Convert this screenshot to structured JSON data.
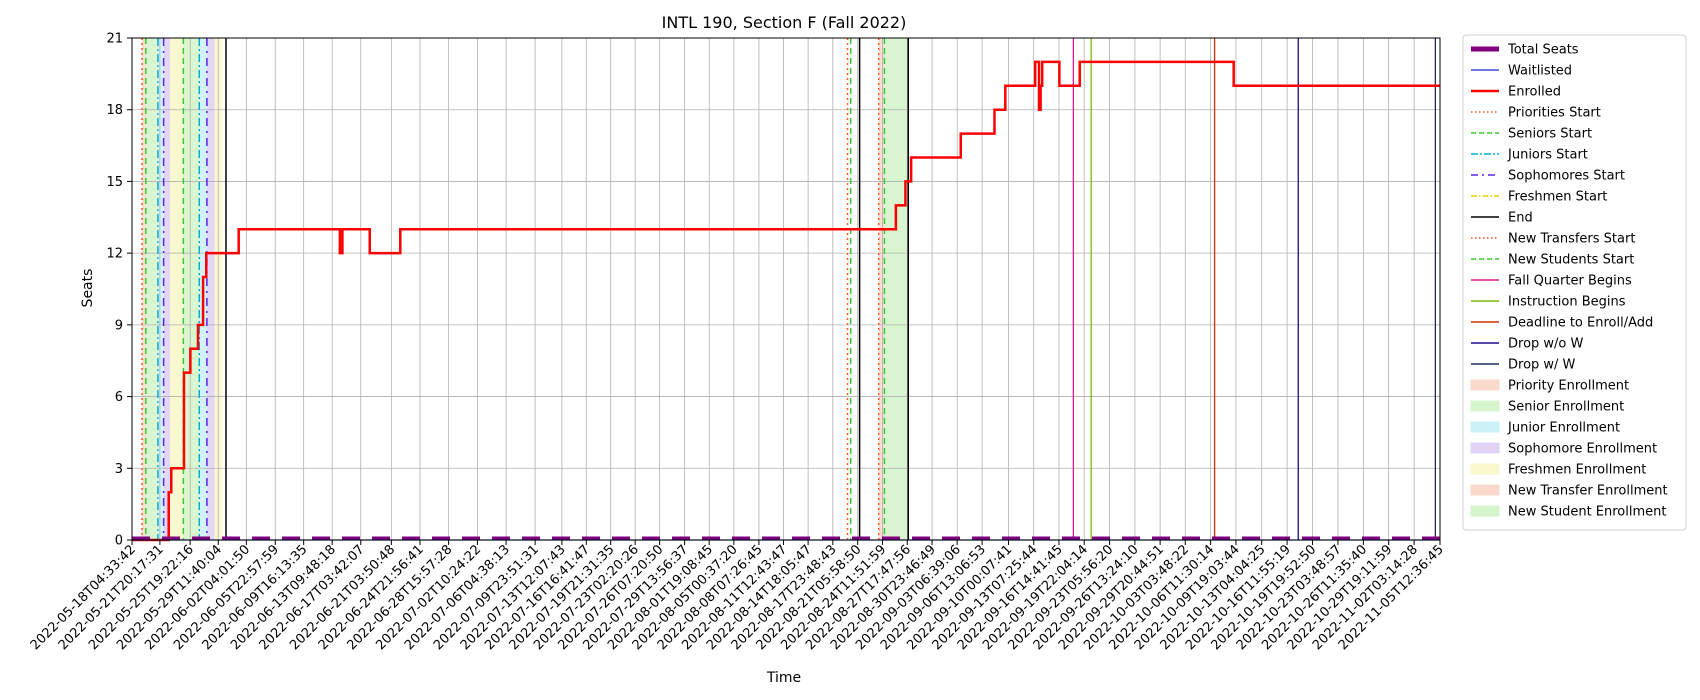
{
  "chart_data": {
    "type": "line",
    "title": "INTL 190, Section F (Fall 2022)",
    "xlabel": "Time",
    "ylabel": "Seats",
    "ylim": [
      0,
      21
    ],
    "yticks": [
      0,
      3,
      6,
      9,
      12,
      15,
      18,
      21
    ],
    "grid": true,
    "legend_position": "outside-right",
    "x_start": "2022-05-18T04:33:42",
    "x_end": "2022-11-05T12:36:45",
    "xticks": [
      "2022-05-18T04:33:42",
      "2022-05-21T20:17:31",
      "2022-05-25T19:22:16",
      "2022-05-29T11:40:04",
      "2022-06-02T04:01:50",
      "2022-06-05T22:57:59",
      "2022-06-09T16:13:35",
      "2022-06-13T09:48:18",
      "2022-06-17T03:42:07",
      "2022-06-21T03:50:48",
      "2022-06-24T21:56:41",
      "2022-06-28T15:57:28",
      "2022-07-02T10:24:22",
      "2022-07-06T04:38:13",
      "2022-07-09T23:51:31",
      "2022-07-13T12:07:43",
      "2022-07-16T16:41:47",
      "2022-07-19T21:31:35",
      "2022-07-23T02:20:26",
      "2022-07-26T07:20:50",
      "2022-07-29T13:56:37",
      "2022-08-01T19:08:45",
      "2022-08-05T00:37:20",
      "2022-08-08T07:26:45",
      "2022-08-11T12:43:47",
      "2022-08-14T18:05:47",
      "2022-08-17T23:48:43",
      "2022-08-21T05:58:50",
      "2022-08-24T11:51:59",
      "2022-08-27T17:47:56",
      "2022-08-30T23:46:49",
      "2022-09-03T06:39:06",
      "2022-09-06T13:06:53",
      "2022-09-10T00:07:41",
      "2022-09-13T07:25:44",
      "2022-09-16T14:41:45",
      "2022-09-19T22:04:14",
      "2022-09-23T05:56:20",
      "2022-09-26T13:24:10",
      "2022-09-29T20:44:51",
      "2022-10-03T03:48:22",
      "2022-10-06T11:30:14",
      "2022-10-09T19:03:44",
      "2022-10-13T04:04:25",
      "2022-10-16T11:55:19",
      "2022-10-19T19:52:50",
      "2022-10-23T03:48:57",
      "2022-10-26T11:35:40",
      "2022-10-29T19:11:59",
      "2022-11-02T03:14:28",
      "2022-11-05T12:36:45"
    ],
    "legend": [
      {
        "label": "Total Seats",
        "kind": "thick",
        "color": "#800080"
      },
      {
        "label": "Waitlisted",
        "kind": "line",
        "color": "#3b4bd8"
      },
      {
        "label": "Enrolled",
        "kind": "line2",
        "color": "#ff0000"
      },
      {
        "label": "Priorities Start",
        "kind": "dotted",
        "color": "#ff5722"
      },
      {
        "label": "Seniors Start",
        "kind": "dashed",
        "color": "#33cc33"
      },
      {
        "label": "Juniors Start",
        "kind": "dashdot",
        "color": "#00b0d8"
      },
      {
        "label": "Sophomores Start",
        "kind": "loosedashdot",
        "color": "#5522ee"
      },
      {
        "label": "Freshmen Start",
        "kind": "dashdot2",
        "color": "#e6d000"
      },
      {
        "label": "End",
        "kind": "line",
        "color": "#000000"
      },
      {
        "label": "New Transfers Start",
        "kind": "dotted",
        "color": "#ff5722"
      },
      {
        "label": "New Students Start",
        "kind": "dashed",
        "color": "#33cc33"
      },
      {
        "label": "Fall Quarter Begins",
        "kind": "line",
        "color": "#e0189c"
      },
      {
        "label": "Instruction Begins",
        "kind": "line",
        "color": "#7fba00"
      },
      {
        "label": "Deadline to Enroll/Add",
        "kind": "line",
        "color": "#cc3300"
      },
      {
        "label": "Drop w/o W",
        "kind": "line",
        "color": "#1a0b8c"
      },
      {
        "label": "Drop w/ W",
        "kind": "line",
        "color": "#1f2f5c"
      },
      {
        "label": "Priority Enrollment",
        "kind": "patch",
        "color": "#f9d9cc"
      },
      {
        "label": "Senior Enrollment",
        "kind": "patch",
        "color": "#d6f5cc"
      },
      {
        "label": "Junior Enrollment",
        "kind": "patch",
        "color": "#ccf2f7"
      },
      {
        "label": "Sophomore Enrollment",
        "kind": "patch",
        "color": "#e0d3f7"
      },
      {
        "label": "Freshmen Enrollment",
        "kind": "patch",
        "color": "#f9f7cc"
      },
      {
        "label": "New Transfer Enrollment",
        "kind": "patch",
        "color": "#f9d9cc"
      },
      {
        "label": "New Student Enrollment",
        "kind": "patch",
        "color": "#d6f5cc"
      }
    ],
    "spans": [
      {
        "name": "Priority Enrollment",
        "start": "2022-05-19T12:00:00",
        "end": "2022-05-19T23:59:00",
        "color": "#f9d9cc"
      },
      {
        "name": "Senior Enrollment",
        "start": "2022-05-19T23:59:00",
        "end": "2022-05-21T14:00:00",
        "color": "#d6f5cc"
      },
      {
        "name": "Junior Enrollment",
        "start": "2022-05-21T14:00:00",
        "end": "2022-05-22T08:00:00",
        "color": "#ccf2f7"
      },
      {
        "name": "Sophomore Enrollment",
        "start": "2022-05-22T08:00:00",
        "end": "2022-05-23T04:00:00",
        "color": "#e0d3f7"
      },
      {
        "name": "Freshmen Enrollment",
        "start": "2022-05-23T04:00:00",
        "end": "2022-05-24T22:00:00",
        "color": "#f9f7cc"
      },
      {
        "name": "Senior Enrollment",
        "start": "2022-05-24T22:00:00",
        "end": "2022-05-27T00:00:00",
        "color": "#d6f5cc"
      },
      {
        "name": "Junior Enrollment",
        "start": "2022-05-27T00:00:00",
        "end": "2022-05-28T00:00:00",
        "color": "#ccf2f7"
      },
      {
        "name": "Sophomore Enrollment",
        "start": "2022-05-28T00:00:00",
        "end": "2022-05-29T00:00:00",
        "color": "#e0d3f7"
      },
      {
        "name": "Freshmen Enrollment",
        "start": "2022-05-29T00:00:00",
        "end": "2022-05-30T00:00:00",
        "color": "#f9f7cc"
      },
      {
        "name": "New Transfer Enrollment",
        "start": "2022-08-24T00:00:00",
        "end": "2022-08-24T18:00:00",
        "color": "#f9d9cc"
      },
      {
        "name": "New Student Enrollment",
        "start": "2022-08-24T18:00:00",
        "end": "2022-08-27T21:00:00",
        "color": "#d6f5cc"
      }
    ],
    "vlines": [
      {
        "name": "Priorities Start",
        "at": "2022-05-19T12:00:00",
        "color": "#ff5722",
        "dash": "2,3",
        "width": 1.5
      },
      {
        "name": "Seniors Start",
        "at": "2022-05-19T23:59:00",
        "color": "#33cc33",
        "dash": "6,4",
        "width": 1.5
      },
      {
        "name": "Juniors Start",
        "at": "2022-05-21T14:00:00",
        "color": "#00b0d8",
        "dash": "8,3,2,3",
        "width": 1.5
      },
      {
        "name": "Sophomores Start",
        "at": "2022-05-22T08:00:00",
        "color": "#5522ee",
        "dash": "8,5,2,5",
        "width": 1.5
      },
      {
        "name": "Seniors Start",
        "at": "2022-05-24T22:00:00",
        "color": "#33cc33",
        "dash": "6,4",
        "width": 1.5
      },
      {
        "name": "Juniors Start",
        "at": "2022-05-27T00:00:00",
        "color": "#00b0d8",
        "dash": "8,3,2,3",
        "width": 1.5
      },
      {
        "name": "Sophomores Start",
        "at": "2022-05-28T00:00:00",
        "color": "#5522ee",
        "dash": "8,5,2,5",
        "width": 1.5
      },
      {
        "name": "End",
        "at": "2022-05-30T12:00:00",
        "color": "#000000",
        "dash": "",
        "width": 1.5
      },
      {
        "name": "Priorities Start",
        "at": "2022-08-19T22:00:00",
        "color": "#ff5722",
        "dash": "2,3",
        "width": 1.5
      },
      {
        "name": "Seniors Start",
        "at": "2022-08-20T08:00:00",
        "color": "#33cc33",
        "dash": "6,4",
        "width": 1.5
      },
      {
        "name": "End",
        "at": "2022-08-21T12:00:00",
        "color": "#000000",
        "dash": "",
        "width": 1.5
      },
      {
        "name": "New Transfers Start",
        "at": "2022-08-24T00:00:00",
        "color": "#ff5722",
        "dash": "2,3",
        "width": 1.5
      },
      {
        "name": "New Students Start",
        "at": "2022-08-24T18:00:00",
        "color": "#33cc33",
        "dash": "6,4",
        "width": 1.5
      },
      {
        "name": "End",
        "at": "2022-08-27T21:00:00",
        "color": "#000000",
        "dash": "",
        "width": 1.5
      },
      {
        "name": "Fall Quarter Begins",
        "at": "2022-09-18T12:00:00",
        "color": "#e0189c",
        "dash": "",
        "width": 1.3
      },
      {
        "name": "Instruction Begins",
        "at": "2022-09-20T20:00:00",
        "color": "#7fba00",
        "dash": "",
        "width": 1.3
      },
      {
        "name": "Deadline to Enroll/Add",
        "at": "2022-10-07T00:00:00",
        "color": "#cc3300",
        "dash": "",
        "width": 1.3
      },
      {
        "name": "Drop w/o W",
        "at": "2022-10-17T23:00:00",
        "color": "#1a0b8c",
        "dash": "",
        "width": 1.3
      },
      {
        "name": "Drop w/ W",
        "at": "2022-11-04T22:00:00",
        "color": "#1f2f5c",
        "dash": "",
        "width": 1.3
      }
    ],
    "series": [
      {
        "name": "Enrolled",
        "color": "#ff0000",
        "step": true,
        "points": [
          [
            "2022-05-18T04:33:42",
            0
          ],
          [
            "2022-05-22T20:00:00",
            0
          ],
          [
            "2022-05-23T00:00:00",
            2
          ],
          [
            "2022-05-23T08:00:00",
            3
          ],
          [
            "2022-05-24T20:00:00",
            3
          ],
          [
            "2022-05-25T00:00:00",
            7
          ],
          [
            "2022-05-25T20:00:00",
            8
          ],
          [
            "2022-05-26T20:00:00",
            9
          ],
          [
            "2022-05-27T12:00:00",
            11
          ],
          [
            "2022-05-27T22:00:00",
            12
          ],
          [
            "2022-06-01T04:00:00",
            13
          ],
          [
            "2022-06-14T10:00:00",
            12
          ],
          [
            "2022-06-14T18:00:00",
            13
          ],
          [
            "2022-06-18T08:00:00",
            12
          ],
          [
            "2022-06-22T08:00:00",
            13
          ],
          [
            "2022-08-26T06:00:00",
            14
          ],
          [
            "2022-08-27T12:00:00",
            15
          ],
          [
            "2022-08-28T06:00:00",
            16
          ],
          [
            "2022-09-03T18:00:00",
            17
          ],
          [
            "2022-09-08T04:00:00",
            18
          ],
          [
            "2022-09-09T14:00:00",
            19
          ],
          [
            "2022-09-13T12:00:00",
            20
          ],
          [
            "2022-09-14T00:00:00",
            18
          ],
          [
            "2022-09-14T05:00:00",
            19
          ],
          [
            "2022-09-14T10:00:00",
            20
          ],
          [
            "2022-09-16T16:00:00",
            19
          ],
          [
            "2022-09-19T08:00:00",
            20
          ],
          [
            "2022-10-09T12:00:00",
            19
          ],
          [
            "2022-11-05T12:36:45",
            19
          ]
        ]
      },
      {
        "name": "Total Seats",
        "color": "#800080",
        "dashed": true,
        "points": [
          [
            "2022-05-18T04:33:42",
            0
          ],
          [
            "2022-11-05T12:36:45",
            0
          ]
        ]
      },
      {
        "name": "Waitlisted",
        "color": "#3b4bd8",
        "points": [
          [
            "2022-05-18T04:33:42",
            0
          ],
          [
            "2022-11-05T12:36:45",
            0
          ]
        ]
      }
    ]
  }
}
